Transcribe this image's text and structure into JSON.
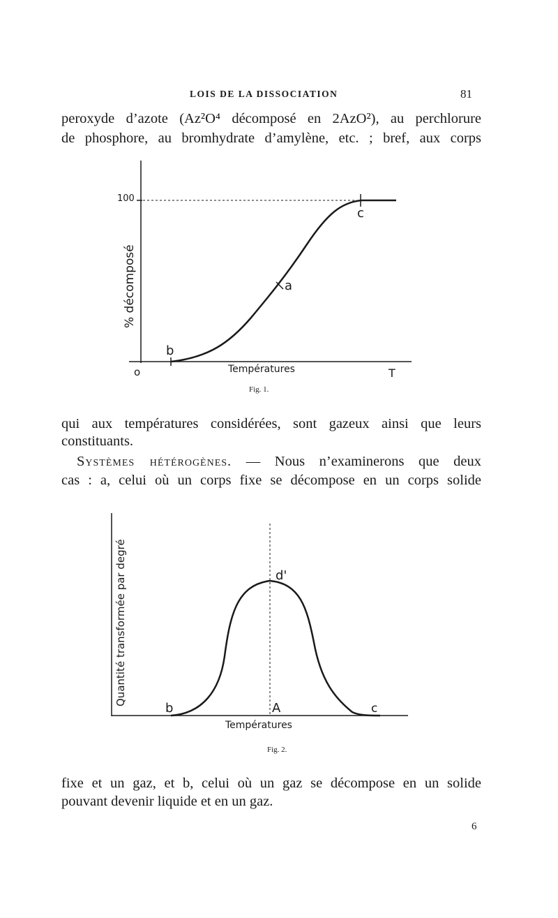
{
  "header": {
    "running_title": "LOIS DE LA DISSOCIATION",
    "page_number": "81"
  },
  "text": {
    "line1": "peroxyde d’azote (Az²O⁴ décomposé en 2AzO²), au perchlorure",
    "line2": "de phosphore, au bromhydrate d’amylène, etc. ; bref, aux corps",
    "line3": "qui aux températures considérées, sont gazeux ainsi que leurs",
    "line4": "constituants.",
    "line5_heading": "Systèmes hétérogènes.",
    "line5_rest": " — Nous n’examinerons que deux",
    "line6": "cas : a, celui où un corps fixe se décompose en un corps solide",
    "line7": "fixe et un gaz, et b, celui où un gaz se décompose en un solide",
    "line8": "pouvant devenir liquide et en un gaz."
  },
  "signature_mark": "6",
  "figures": {
    "fig1": {
      "caption": "Fig. 1.",
      "y_label": "% décomposé",
      "y_tick": "100",
      "x_label": "Températures",
      "origin_label": "o",
      "x_end_label": "T",
      "point_labels": {
        "a": "a",
        "b": "b",
        "c": "c"
      }
    },
    "fig2": {
      "caption": "Fig. 2.",
      "y_label": "Quantité transformée par degré",
      "x_label": "Températures",
      "point_labels": {
        "b": "b",
        "d": "d'",
        "A": "A",
        "c": "c"
      }
    }
  }
}
